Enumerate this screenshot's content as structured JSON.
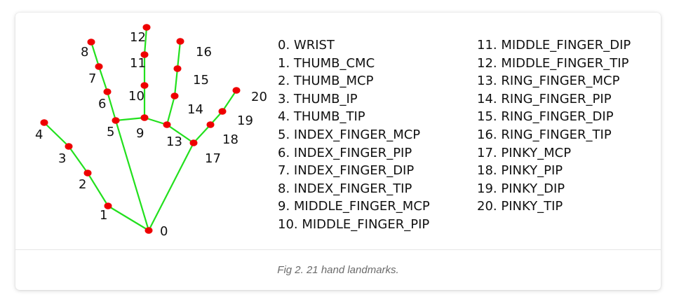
{
  "figure": {
    "caption": "Fig 2. 21 hand landmarks.",
    "colors": {
      "bone": "#22e01d",
      "joint": "#ee0000",
      "label": "#111111"
    },
    "landmark_numbers": [
      "0",
      "1",
      "2",
      "3",
      "4",
      "5",
      "6",
      "7",
      "8",
      "9",
      "10",
      "11",
      "12",
      "13",
      "14",
      "15",
      "16",
      "17",
      "18",
      "19",
      "20"
    ],
    "legend_col_1": [
      "0. WRIST",
      "1. THUMB_CMC",
      "2. THUMB_MCP",
      "3. THUMB_IP",
      "4. THUMB_TIP",
      "5. INDEX_FINGER_MCP",
      "6. INDEX_FINGER_PIP",
      "7. INDEX_FINGER_DIP",
      "8. INDEX_FINGER_TIP",
      "9. MIDDLE_FINGER_MCP",
      "10. MIDDLE_FINGER_PIP"
    ],
    "legend_col_2": [
      "11. MIDDLE_FINGER_DIP",
      "12. MIDDLE_FINGER_TIP",
      "13. RING_FINGER_MCP",
      "14. RING_FINGER_PIP",
      "15. RING_FINGER_DIP",
      "16. RING_FINGER_TIP",
      "17. PINKY_MCP",
      "18. PINKY_PIP",
      "19. PINKY_DIP",
      "20. PINKY_TIP"
    ]
  }
}
